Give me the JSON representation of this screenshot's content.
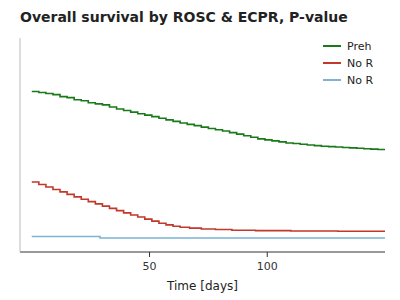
{
  "chart_data": {
    "type": "step",
    "title": "Overall survival by ROSC & ECPR, P-value",
    "x_label": "Time [days]",
    "xlim": [
      -5,
      150
    ],
    "ylim": [
      -0.02,
      1.02
    ],
    "xticks": [
      50,
      100
    ],
    "tick_labels": "x",
    "grid": false,
    "legend": "upper right",
    "series": [
      {
        "name": "Preh",
        "color": "#1a7a1a",
        "x": [
          0,
          3,
          6,
          9,
          12,
          15,
          18,
          21,
          24,
          27,
          30,
          33,
          36,
          39,
          42,
          45,
          48,
          51,
          54,
          57,
          60,
          63,
          66,
          69,
          72,
          75,
          78,
          81,
          84,
          87,
          90,
          93,
          96,
          99,
          102,
          105,
          108,
          111,
          114,
          117,
          120,
          123,
          126,
          129,
          132,
          135,
          138,
          141,
          144,
          147,
          150
        ],
        "values": [
          0.76,
          0.755,
          0.75,
          0.745,
          0.735,
          0.73,
          0.72,
          0.715,
          0.705,
          0.7,
          0.695,
          0.685,
          0.675,
          0.668,
          0.66,
          0.652,
          0.645,
          0.638,
          0.63,
          0.622,
          0.615,
          0.607,
          0.6,
          0.594,
          0.587,
          0.58,
          0.574,
          0.568,
          0.56,
          0.553,
          0.545,
          0.538,
          0.53,
          0.525,
          0.52,
          0.515,
          0.51,
          0.507,
          0.504,
          0.5,
          0.497,
          0.494,
          0.492,
          0.49,
          0.488,
          0.486,
          0.484,
          0.482,
          0.48,
          0.478,
          0.476
        ]
      },
      {
        "name": "No R",
        "color": "#c0392b",
        "x": [
          0,
          3,
          6,
          9,
          12,
          15,
          18,
          21,
          24,
          27,
          30,
          33,
          36,
          39,
          42,
          45,
          48,
          51,
          54,
          57,
          60,
          63,
          67,
          72,
          78,
          85,
          95,
          110,
          130,
          150
        ],
        "values": [
          0.32,
          0.308,
          0.296,
          0.284,
          0.272,
          0.26,
          0.248,
          0.236,
          0.225,
          0.214,
          0.203,
          0.192,
          0.181,
          0.17,
          0.16,
          0.15,
          0.14,
          0.13,
          0.12,
          0.112,
          0.105,
          0.1,
          0.096,
          0.092,
          0.089,
          0.086,
          0.084,
          0.082,
          0.081,
          0.08
        ]
      },
      {
        "name": "No R",
        "color": "#7fb3d3",
        "x": [
          0,
          28,
          29,
          150
        ],
        "values": [
          0.055,
          0.055,
          0.048,
          0.048
        ]
      }
    ]
  }
}
